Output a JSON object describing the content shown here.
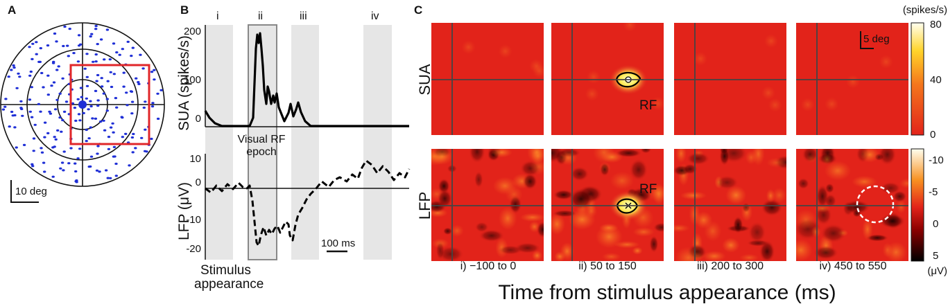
{
  "panels": {
    "a": {
      "letter": "A",
      "scale_label": "10 deg",
      "colors": {
        "dots": "#1f2fd6",
        "box": "#e0262a"
      }
    },
    "b": {
      "letter": "B",
      "epoch_labels": [
        "i",
        "ii",
        "iii",
        "iv"
      ],
      "sua_ylabel": "SUA (spikes/s)",
      "sua_ticks": [
        "200",
        "100",
        "0"
      ],
      "lfp_ylabel": "LFP (μV)",
      "lfp_ticks": [
        "10",
        "0",
        "-10",
        "-20"
      ],
      "rf_epoch_label_1": "Visual RF",
      "rf_epoch_label_2": "epoch",
      "scale_label": "100 ms",
      "stimulus_label_1": "Stimulus",
      "stimulus_label_2": "appearance",
      "colors": {
        "epoch_band": "#e6e6e6",
        "trace": "#000000",
        "box": "#888888"
      }
    },
    "c": {
      "letter": "C",
      "row_labels": [
        "SUA",
        "LFP"
      ],
      "column_labels": [
        "i) −100 to 0",
        "ii) 50 to 150",
        "iii) 200 to 300",
        "iv) 450 to 550"
      ],
      "rf_label": "RF",
      "scale_label": "5 deg",
      "x_title": "Time from stimulus appearance (ms)",
      "sua_colorbar_unit": "(spikes/s)",
      "sua_colorbar_ticks": [
        "80",
        "40",
        "0"
      ],
      "lfp_colorbar_unit": "(μV)",
      "lfp_colorbar_ticks": [
        "-10",
        "-5",
        "0",
        "5"
      ],
      "colors": {
        "heat_base": "#e2231a",
        "heat_hot": "#ffffc8",
        "heat_cold": "#000000"
      }
    }
  }
}
